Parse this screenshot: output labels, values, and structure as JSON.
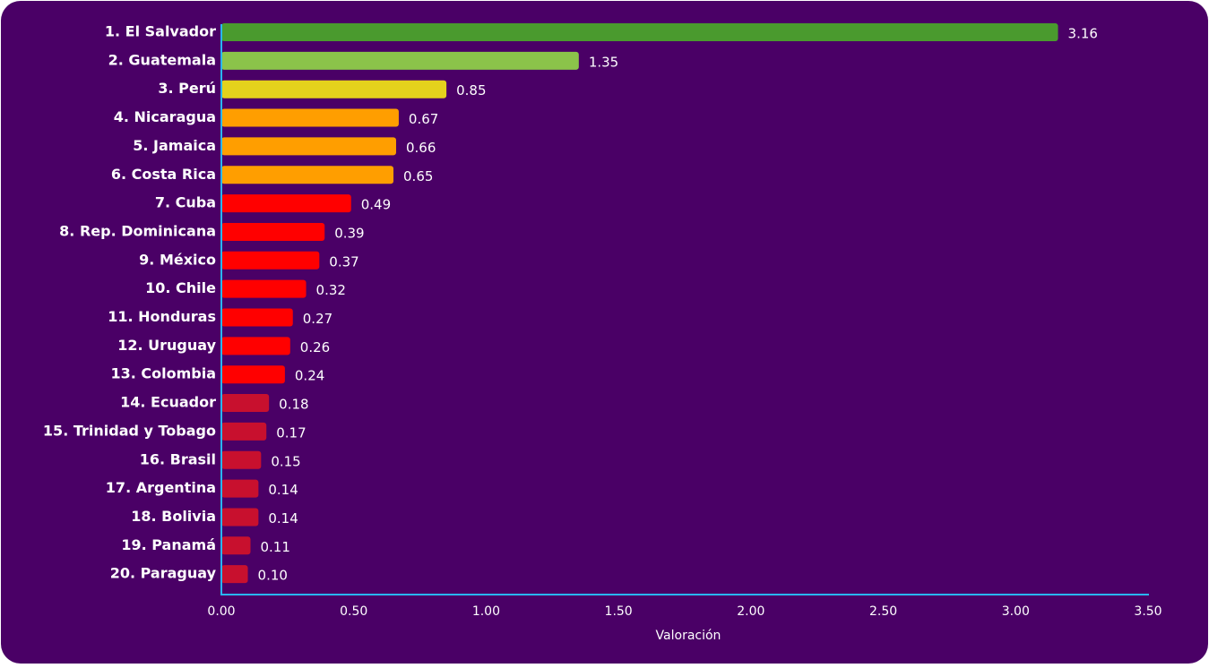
{
  "chart_data": {
    "type": "barh",
    "x_label": "Valoración",
    "categories": [
      "1. El Salvador",
      "2. Guatemala",
      "3. Perú",
      "4. Nicaragua",
      "5. Jamaica",
      "6. Costa Rica",
      "7. Cuba",
      "8. Rep. Dominicana",
      "9. México",
      "10. Chile",
      "11. Honduras",
      "12. Uruguay",
      "13. Colombia",
      "14. Ecuador",
      "15. Trinidad y Tobago",
      "16. Brasil",
      "17. Argentina",
      "18. Bolivia",
      "19. Panamá",
      "20. Paraguay"
    ],
    "values": [
      3.16,
      1.35,
      0.85,
      0.67,
      0.66,
      0.65,
      0.49,
      0.39,
      0.37,
      0.32,
      0.27,
      0.26,
      0.24,
      0.18,
      0.17,
      0.15,
      0.14,
      0.14,
      0.11,
      0.1
    ],
    "value_labels": [
      "3.16",
      "1.35",
      "0.85",
      "0.67",
      "0.66",
      "0.65",
      "0.49",
      "0.39",
      "0.37",
      "0.32",
      "0.27",
      "0.26",
      "0.24",
      "0.18",
      "0.17",
      "0.15",
      "0.14",
      "0.14",
      "0.11",
      "0.10"
    ],
    "colors": [
      "#4a9a2e",
      "#8bc34a",
      "#e4d21c",
      "#ff9e00",
      "#ff9e00",
      "#ff9e00",
      "#ff0000",
      "#ff0000",
      "#ff0000",
      "#ff0000",
      "#ff0000",
      "#ff0000",
      "#ff0000",
      "#c8102e",
      "#c8102e",
      "#c8102e",
      "#c8102e",
      "#c8102e",
      "#c8102e",
      "#c8102e"
    ],
    "xlim": [
      0,
      3.5
    ],
    "xticks": [
      {
        "value": 0,
        "label": "0.00"
      },
      {
        "value": 0.5,
        "label": "0.50"
      },
      {
        "value": 1,
        "label": "1.00"
      },
      {
        "value": 1.5,
        "label": "1.50"
      },
      {
        "value": 2,
        "label": "2.00"
      },
      {
        "value": 2.5,
        "label": "2.50"
      },
      {
        "value": 3,
        "label": "3.00"
      },
      {
        "value": 3.5,
        "label": "3.50"
      }
    ],
    "grid": false
  }
}
